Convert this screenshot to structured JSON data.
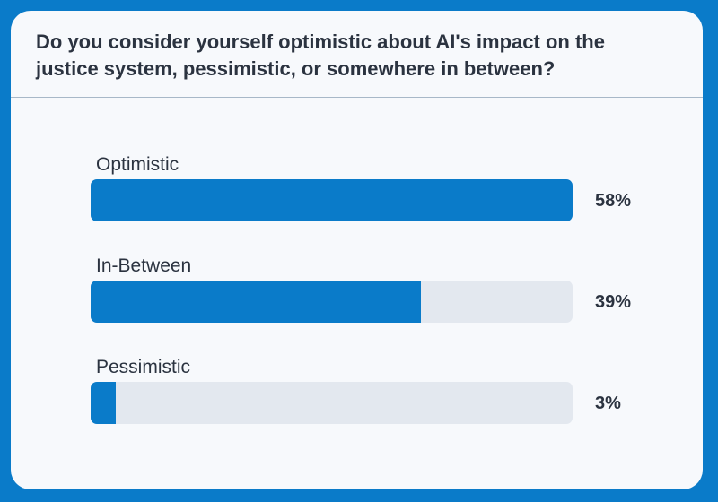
{
  "poll": {
    "question": "Do you consider yourself optimistic about AI's impact on the justice system, pessimistic, or somewhere in between?",
    "options": [
      {
        "label": "Optimistic",
        "percent_label": "58%",
        "fill_fraction": 1.0
      },
      {
        "label": "In-Between",
        "percent_label": "39%",
        "fill_fraction": 0.685
      },
      {
        "label": "Pessimistic",
        "percent_label": "3%",
        "fill_fraction": 0.052
      }
    ]
  },
  "colors": {
    "accent": "#0a7bc9",
    "track": "#e3e8ef",
    "text": "#2b3340",
    "card": "#f7f9fc"
  }
}
